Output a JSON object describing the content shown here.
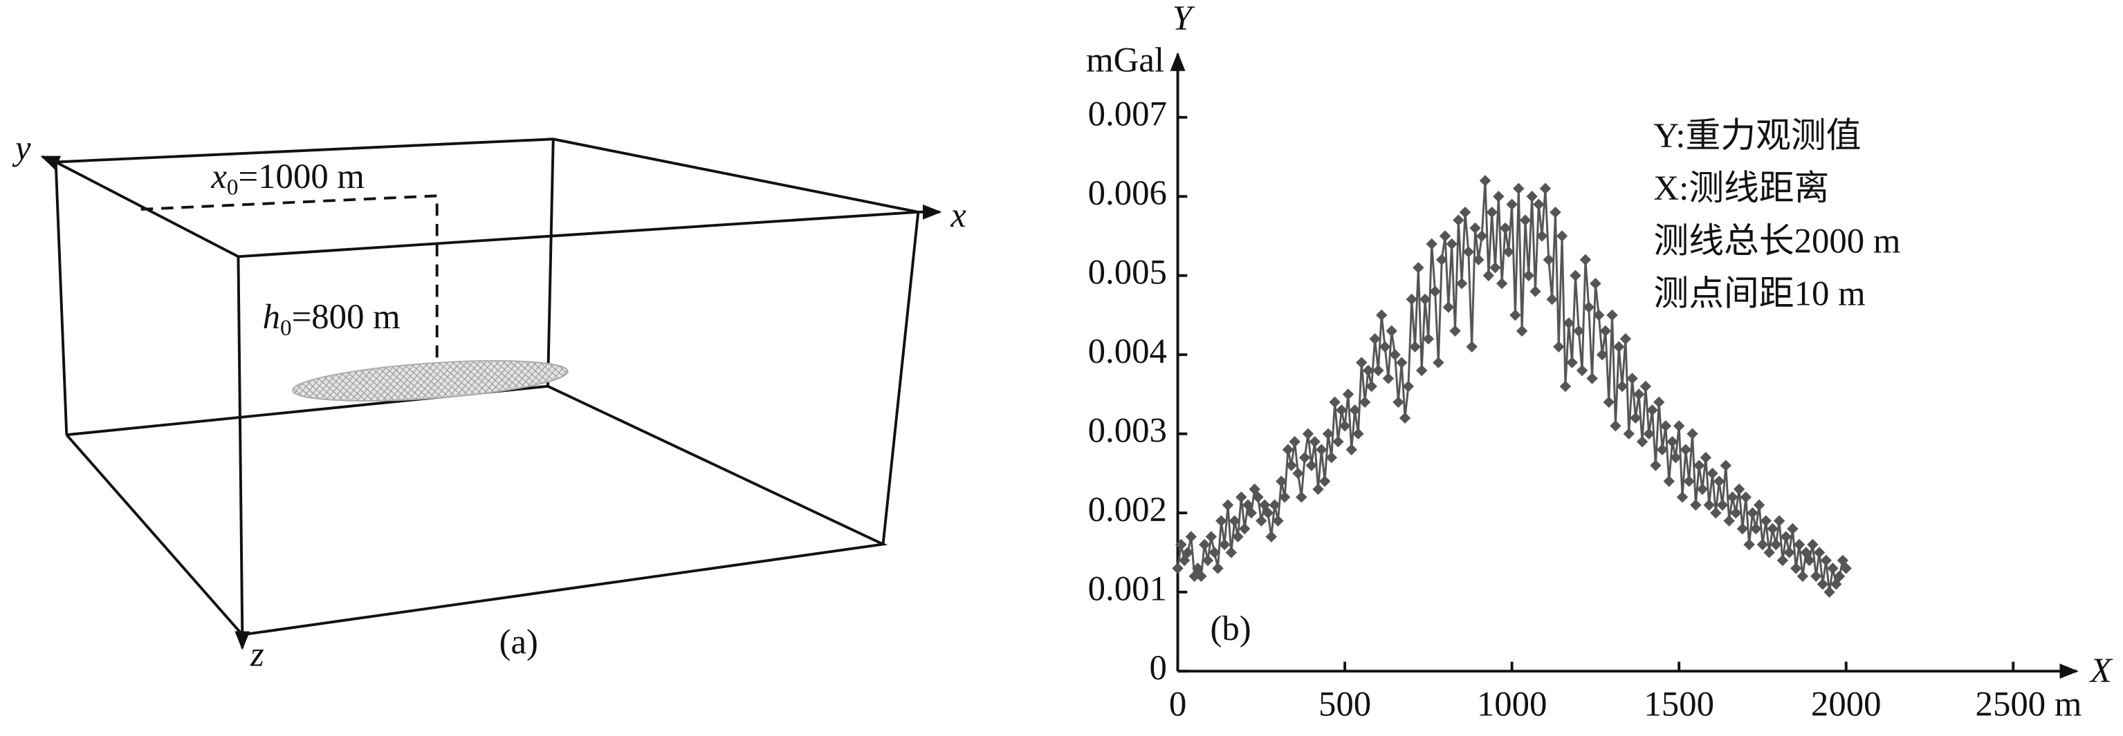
{
  "diagram": {
    "y_axis": "y",
    "x_axis": "x",
    "z_axis": "z",
    "x0_label": {
      "var": "x",
      "sub": "0",
      "rest": "=1000 m"
    },
    "h0_label": {
      "var": "h",
      "sub": "0",
      "rest": "=800 m"
    },
    "caption": "(a)"
  },
  "chart_data": {
    "type": "line",
    "y_axis_label": "Y",
    "y_unit": "mGal",
    "x_axis_label": "X",
    "caption": "(b)",
    "notes": [
      "Y:重力观测值",
      "X:测线距离",
      "测线总长2000 m",
      "测点间距10 m"
    ],
    "color": "#555555",
    "marker": "diamond",
    "xlim": [
      0,
      2690
    ],
    "ylim": [
      0,
      0.0078
    ],
    "xticks": [
      0,
      500,
      1000,
      1500,
      2000,
      {
        "value": 2500,
        "label": "2500 m"
      }
    ],
    "yticks": [
      0,
      0.001,
      0.002,
      0.003,
      0.004,
      0.005,
      0.006,
      0.007
    ],
    "x": [
      0,
      10,
      20,
      30,
      40,
      50,
      60,
      70,
      80,
      90,
      100,
      110,
      120,
      130,
      140,
      150,
      160,
      170,
      180,
      190,
      200,
      210,
      220,
      230,
      240,
      250,
      260,
      270,
      280,
      290,
      300,
      310,
      320,
      330,
      340,
      350,
      360,
      370,
      380,
      390,
      400,
      410,
      420,
      430,
      440,
      450,
      460,
      470,
      480,
      490,
      500,
      510,
      520,
      530,
      540,
      550,
      560,
      570,
      580,
      590,
      600,
      610,
      620,
      630,
      640,
      650,
      660,
      670,
      680,
      690,
      700,
      710,
      720,
      730,
      740,
      750,
      760,
      770,
      780,
      790,
      800,
      810,
      820,
      830,
      840,
      850,
      860,
      870,
      880,
      890,
      900,
      910,
      920,
      930,
      940,
      950,
      960,
      970,
      980,
      990,
      1000,
      1010,
      1020,
      1030,
      1040,
      1050,
      1060,
      1070,
      1080,
      1090,
      1100,
      1110,
      1120,
      1130,
      1140,
      1150,
      1160,
      1170,
      1180,
      1190,
      1200,
      1210,
      1220,
      1230,
      1240,
      1250,
      1260,
      1270,
      1280,
      1290,
      1300,
      1310,
      1320,
      1330,
      1340,
      1350,
      1360,
      1370,
      1380,
      1390,
      1400,
      1410,
      1420,
      1430,
      1440,
      1450,
      1460,
      1470,
      1480,
      1490,
      1500,
      1510,
      1520,
      1530,
      1540,
      1550,
      1560,
      1570,
      1580,
      1590,
      1600,
      1610,
      1620,
      1630,
      1640,
      1650,
      1660,
      1670,
      1680,
      1690,
      1700,
      1710,
      1720,
      1730,
      1740,
      1750,
      1760,
      1770,
      1780,
      1790,
      1800,
      1810,
      1820,
      1830,
      1840,
      1850,
      1860,
      1870,
      1880,
      1890,
      1900,
      1910,
      1920,
      1930,
      1940,
      1950,
      1960,
      1970,
      1980,
      1990,
      2000
    ],
    "values": [
      0.0013,
      0.0016,
      0.0014,
      0.0015,
      0.0017,
      0.0012,
      0.0013,
      0.0012,
      0.0016,
      0.0014,
      0.0017,
      0.0015,
      0.0013,
      0.0019,
      0.0016,
      0.0021,
      0.0015,
      0.0019,
      0.0017,
      0.0022,
      0.0018,
      0.0021,
      0.002,
      0.0023,
      0.0022,
      0.0019,
      0.0021,
      0.002,
      0.0017,
      0.0021,
      0.0019,
      0.0024,
      0.0022,
      0.0028,
      0.0026,
      0.0029,
      0.0025,
      0.0022,
      0.0027,
      0.003,
      0.0026,
      0.0029,
      0.0023,
      0.0028,
      0.0024,
      0.003,
      0.0027,
      0.0034,
      0.0029,
      0.0033,
      0.0031,
      0.0035,
      0.0028,
      0.0033,
      0.003,
      0.0039,
      0.0034,
      0.0038,
      0.0036,
      0.0042,
      0.0038,
      0.0045,
      0.0041,
      0.0037,
      0.0043,
      0.004,
      0.0034,
      0.0039,
      0.0032,
      0.0036,
      0.0047,
      0.0041,
      0.0051,
      0.0038,
      0.0047,
      0.0042,
      0.0054,
      0.0048,
      0.0039,
      0.0052,
      0.0055,
      0.0046,
      0.0054,
      0.0043,
      0.0057,
      0.0049,
      0.0058,
      0.0053,
      0.0041,
      0.0056,
      0.0052,
      0.0055,
      0.0062,
      0.005,
      0.0058,
      0.0051,
      0.006,
      0.0049,
      0.0056,
      0.0053,
      0.0059,
      0.0045,
      0.0061,
      0.0043,
      0.0057,
      0.005,
      0.006,
      0.0048,
      0.0059,
      0.0055,
      0.0061,
      0.0052,
      0.0047,
      0.0058,
      0.0041,
      0.0055,
      0.0036,
      0.0044,
      0.0039,
      0.005,
      0.0043,
      0.0038,
      0.0052,
      0.0046,
      0.0037,
      0.0049,
      0.0045,
      0.004,
      0.0043,
      0.0034,
      0.0045,
      0.0031,
      0.0041,
      0.0036,
      0.0042,
      0.003,
      0.0037,
      0.0032,
      0.0035,
      0.0029,
      0.0036,
      0.003,
      0.0033,
      0.0026,
      0.0034,
      0.0028,
      0.0031,
      0.0024,
      0.0029,
      0.0027,
      0.0031,
      0.0022,
      0.0028,
      0.0024,
      0.003,
      0.0021,
      0.0026,
      0.0023,
      0.0027,
      0.0021,
      0.0025,
      0.002,
      0.0024,
      0.0021,
      0.0026,
      0.0019,
      0.0022,
      0.002,
      0.0023,
      0.0018,
      0.0022,
      0.0016,
      0.002,
      0.0018,
      0.0021,
      0.0016,
      0.0019,
      0.0015,
      0.0018,
      0.0016,
      0.0019,
      0.0014,
      0.0017,
      0.0015,
      0.0018,
      0.0013,
      0.0016,
      0.0012,
      0.0015,
      0.0014,
      0.0016,
      0.0012,
      0.0015,
      0.0011,
      0.0014,
      0.001,
      0.0013,
      0.0011,
      0.0012,
      0.0014,
      0.0013
    ]
  }
}
